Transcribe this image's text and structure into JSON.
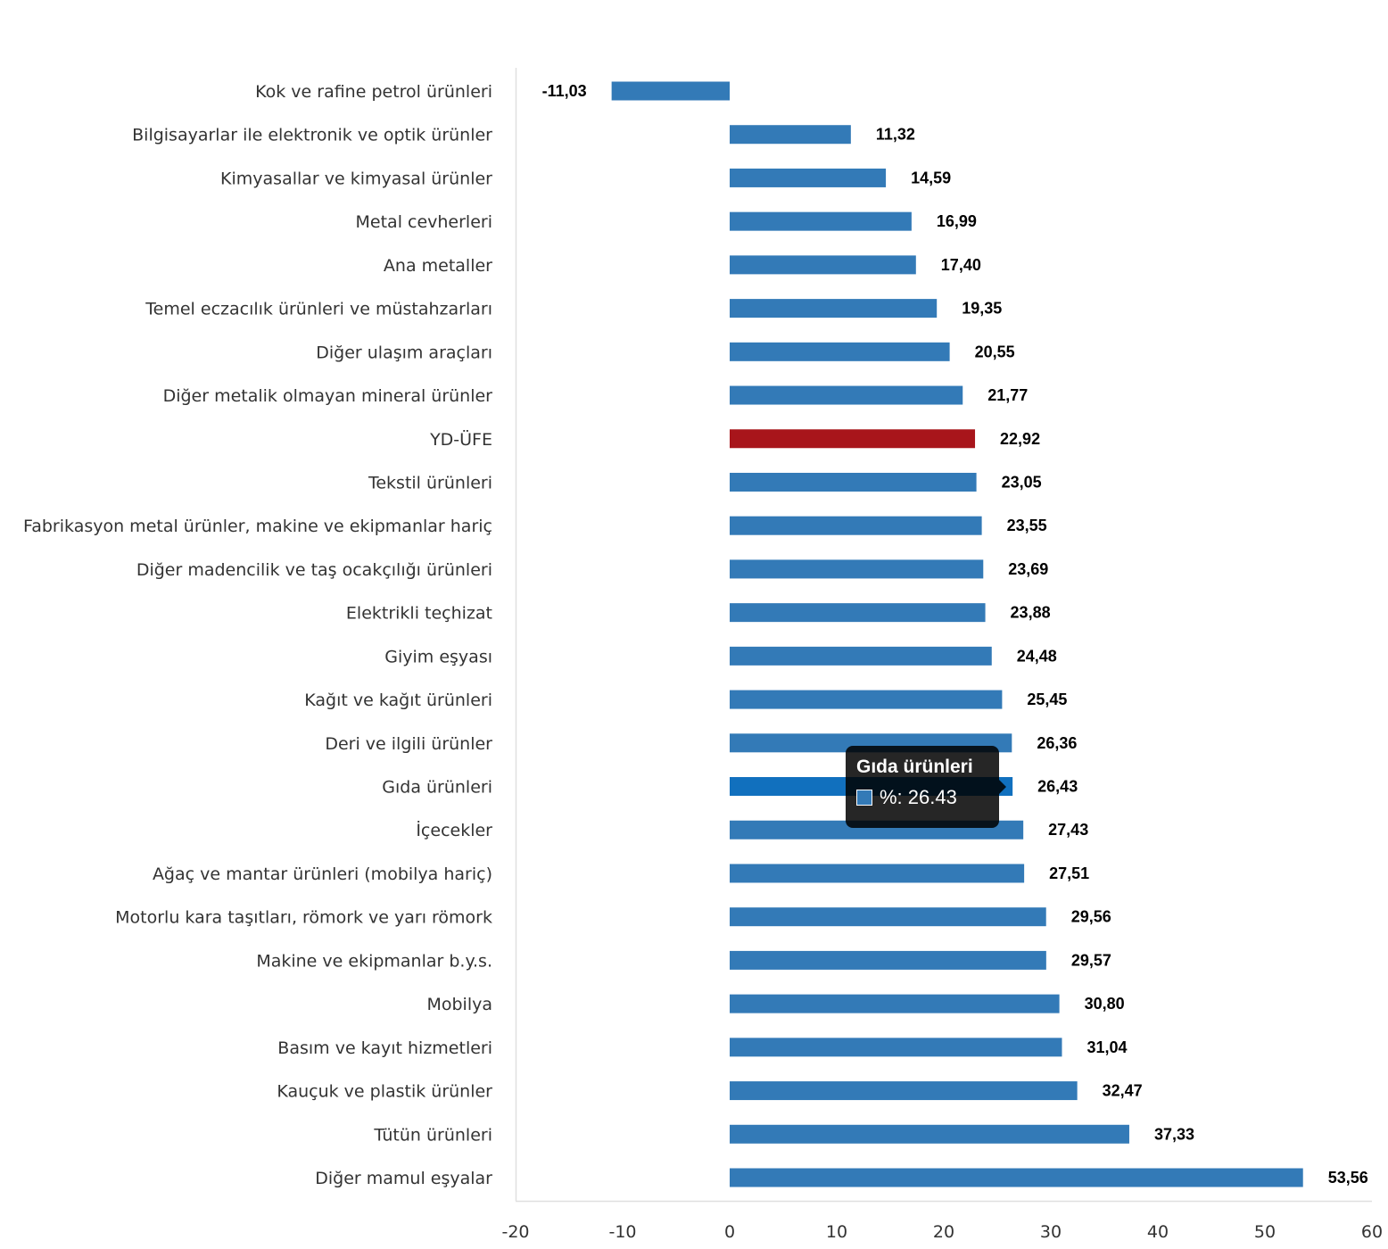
{
  "chart_data": {
    "type": "bar",
    "orientation": "horizontal",
    "title": "",
    "xlabel": "",
    "ylabel": "",
    "xlim": [
      -20,
      60
    ],
    "xticks": [
      -20,
      -10,
      0,
      10,
      20,
      30,
      40,
      50,
      60
    ],
    "xtick_labels": [
      "-20",
      "-10",
      "0",
      "10",
      "20",
      "30",
      "40",
      "50",
      "60"
    ],
    "grid": false,
    "legend": "none",
    "series": [
      {
        "name": "%",
        "color": "#337ab7"
      }
    ],
    "categories": [
      "Kok ve rafine petrol ürünleri",
      "Bilgisayarlar ile elektronik ve optik ürünler",
      "Kimyasallar ve kimyasal ürünler",
      "Metal cevherleri",
      "Ana metaller",
      "Temel eczacılık ürünleri ve müstahzarları",
      "Diğer ulaşım araçları",
      "Diğer metalik olmayan mineral ürünler",
      "YD-ÜFE",
      "Tekstil ürünleri",
      "Fabrikasyon metal ürünler, makine ve ekipmanlar hariç",
      "Diğer madencilik ve taş ocakçılığı ürünleri",
      "Elektrikli teçhizat",
      "Giyim eşyası",
      "Kağıt ve kağıt ürünleri",
      "Deri ve ilgili ürünler",
      "Gıda ürünleri",
      "İçecekler",
      "Ağaç ve mantar ürünleri (mobilya hariç)",
      "Motorlu kara taşıtları, römork ve yarı römork",
      "Makine ve ekipmanlar b.y.s.",
      "Mobilya",
      "Basım ve kayıt hizmetleri",
      "Kauçuk ve plastik ürünler",
      "Tütün ürünleri",
      "Diğer mamul eşyalar"
    ],
    "values": [
      -11.03,
      11.32,
      14.59,
      16.99,
      17.4,
      19.35,
      20.55,
      21.77,
      22.92,
      23.05,
      23.55,
      23.69,
      23.88,
      24.48,
      25.45,
      26.36,
      26.43,
      27.43,
      27.51,
      29.56,
      29.57,
      30.8,
      31.04,
      32.47,
      37.33,
      53.56
    ],
    "value_labels": [
      "-11,03",
      "11,32",
      "14,59",
      "16,99",
      "17,40",
      "19,35",
      "20,55",
      "21,77",
      "22,92",
      "23,05",
      "23,55",
      "23,69",
      "23,88",
      "24,48",
      "25,45",
      "26,36",
      "26,43",
      "27,43",
      "27,51",
      "29,56",
      "29,57",
      "30,80",
      "31,04",
      "32,47",
      "37,33",
      "53,56"
    ],
    "colors": {
      "default": "#337ab7",
      "highlight_category": "YD-ÜFE",
      "highlight": "#a8151b",
      "hover_category": "Gıda ürünleri",
      "hover": "#1170be"
    }
  },
  "tooltip": {
    "title": "Gıda ürünleri",
    "series_label": "%",
    "value": "26.43",
    "text": "%: 26.43",
    "swatch_color": "#337ab7"
  }
}
